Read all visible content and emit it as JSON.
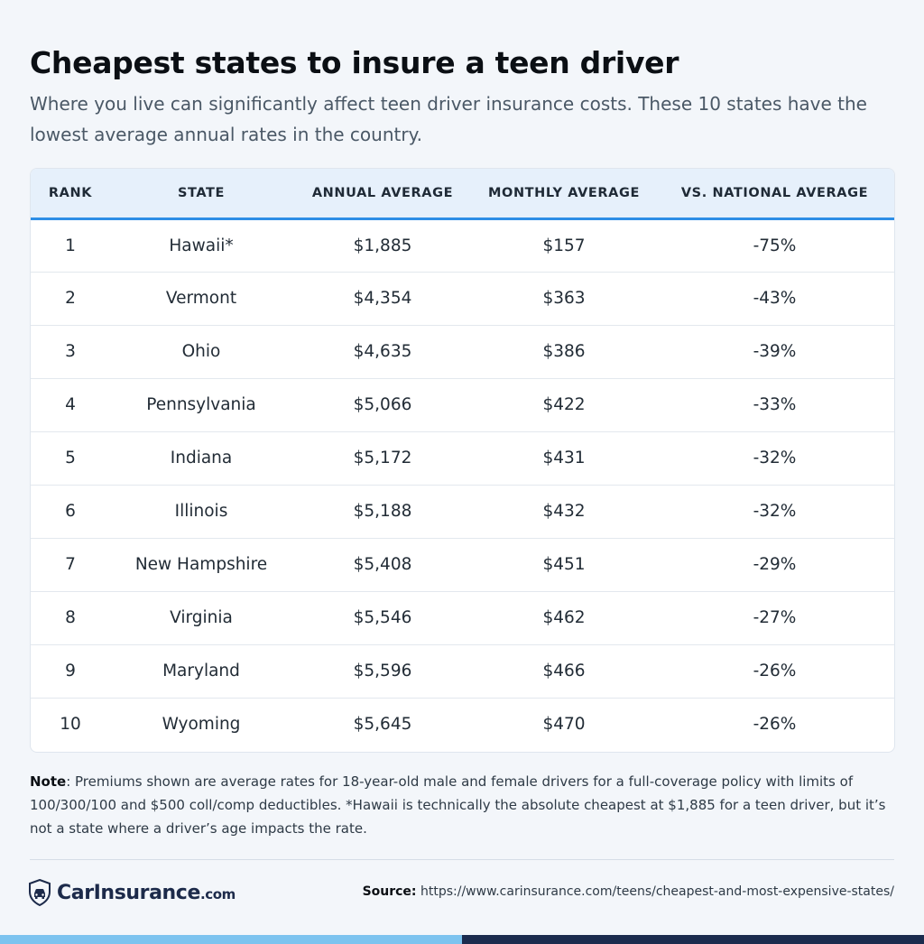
{
  "title": "Cheapest states to insure a teen driver",
  "subtitle": "Where you live can significantly affect teen driver insurance costs. These 10 states have the lowest average annual rates in the country.",
  "table": {
    "columns": [
      "RANK",
      "STATE",
      "ANNUAL AVERAGE",
      "MONTHLY AVERAGE",
      "VS. NATIONAL AVERAGE"
    ],
    "rows": [
      [
        "1",
        "Hawaii*",
        "$1,885",
        "$157",
        "-75%"
      ],
      [
        "2",
        "Vermont",
        "$4,354",
        "$363",
        "-43%"
      ],
      [
        "3",
        "Ohio",
        "$4,635",
        "$386",
        "-39%"
      ],
      [
        "4",
        "Pennsylvania",
        "$5,066",
        "$422",
        "-33%"
      ],
      [
        "5",
        "Indiana",
        "$5,172",
        "$431",
        "-32%"
      ],
      [
        "6",
        "Illinois",
        "$5,188",
        "$432",
        "-32%"
      ],
      [
        "7",
        "New Hampshire",
        "$5,408",
        "$451",
        "-29%"
      ],
      [
        "8",
        "Virginia",
        "$5,546",
        "$462",
        "-27%"
      ],
      [
        "9",
        "Maryland",
        "$5,596",
        "$466",
        "-26%"
      ],
      [
        "10",
        "Wyoming",
        "$5,645",
        "$470",
        "-26%"
      ]
    ]
  },
  "note": {
    "label": "Note",
    "text": ": Premiums shown are average rates for 18-year-old male and female drivers for a full-coverage policy with limits of 100/300/100 and $500 coll/comp deductibles. *Hawaii is technically the absolute cheapest at $1,885 for a teen driver, but it’s not a state where a driver’s age impacts the rate."
  },
  "logo": {
    "name": "CarInsurance",
    "suffix": ".com",
    "icon": "shield-car-icon"
  },
  "source": {
    "label": "Source:",
    "url": "https://www.carinsurance.com/teens/cheapest-and-most-expensive-states/"
  },
  "colors": {
    "header_bg": "#e6f0fb",
    "header_border": "#2d8ee6",
    "bar_left": "#7cc3ef",
    "bar_right": "#1b2b4e",
    "logo_navy": "#1c2a4a"
  }
}
